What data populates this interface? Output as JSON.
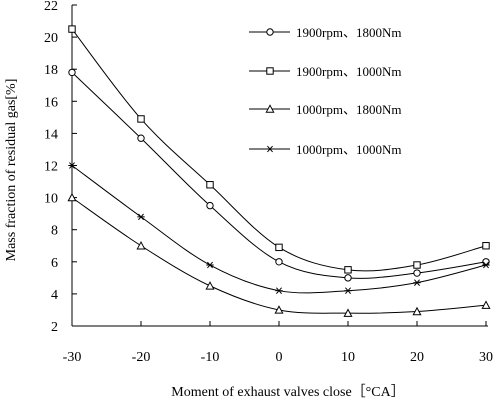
{
  "chart_data": {
    "type": "line",
    "xlabel": "Moment of exhaust valves close［°CA］",
    "ylabel": "Mass fraction of residual gas[%]",
    "x": [
      -30,
      -20,
      -10,
      0,
      10,
      20,
      30
    ],
    "xlim": [
      -30,
      30
    ],
    "ylim": [
      2,
      22
    ],
    "x_ticks": [
      -30,
      -20,
      -10,
      0,
      10,
      20,
      30
    ],
    "y_ticks": [
      2,
      4,
      6,
      8,
      10,
      12,
      14,
      16,
      18,
      20,
      22
    ],
    "grid": false,
    "legend_position": "top-right",
    "series": [
      {
        "name": "1900rpm、1800Nm",
        "marker": "circle",
        "values": [
          17.8,
          13.7,
          9.5,
          6.0,
          5.0,
          5.3,
          6.0
        ]
      },
      {
        "name": "1900rpm、1000Nm",
        "marker": "square",
        "values": [
          20.5,
          14.9,
          10.8,
          6.9,
          5.5,
          5.8,
          7.0
        ]
      },
      {
        "name": "1000rpm、1800Nm",
        "marker": "triangle",
        "values": [
          10.0,
          7.0,
          4.5,
          3.0,
          2.8,
          2.9,
          3.3
        ]
      },
      {
        "name": "1000rpm、1000Nm",
        "marker": "asterisk",
        "values": [
          12.0,
          8.8,
          5.8,
          4.2,
          4.2,
          4.7,
          5.8
        ]
      }
    ]
  }
}
